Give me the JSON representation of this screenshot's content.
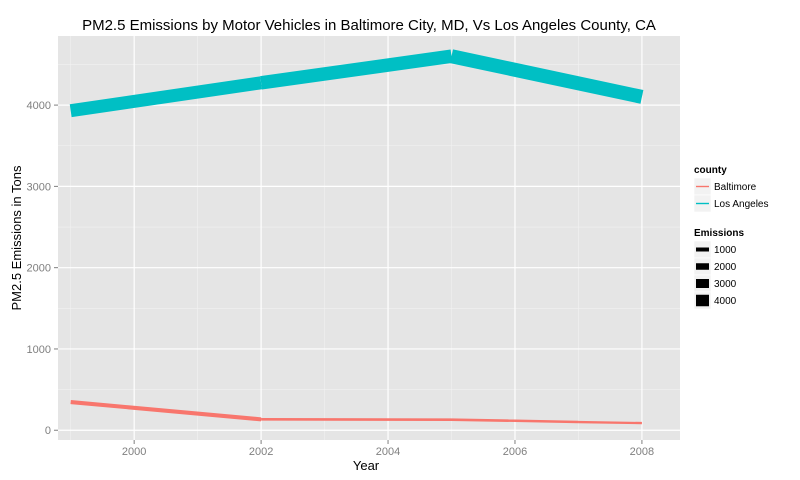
{
  "chart_data": {
    "type": "line",
    "title": "PM2.5 Emissions by Motor Vehicles in Baltimore City, MD, Vs Los Angeles County, CA",
    "xlabel": "Year",
    "ylabel": "PM2.5 Emissions in Tons",
    "xlim": [
      1998.8,
      2008.6
    ],
    "ylim": [
      -120,
      4850
    ],
    "x_ticks": [
      2000,
      2002,
      2004,
      2006,
      2008
    ],
    "y_ticks": [
      0,
      1000,
      2000,
      3000,
      4000
    ],
    "grid": true,
    "panel_background": "#e5e5e5",
    "legend_position": "right",
    "series": [
      {
        "name": "Baltimore",
        "color": "#f8766d",
        "points": [
          {
            "x": 1999,
            "y": 347
          },
          {
            "x": 2002,
            "y": 134
          },
          {
            "x": 2005,
            "y": 130
          },
          {
            "x": 2006,
            "y": 117
          },
          {
            "x": 2007,
            "y": 101
          },
          {
            "x": 2008,
            "y": 88
          }
        ]
      },
      {
        "name": "Los Angeles",
        "color": "#00bfc4",
        "points": [
          {
            "x": 1999,
            "y": 3931
          },
          {
            "x": 2002,
            "y": 4274
          },
          {
            "x": 2005,
            "y": 4601
          },
          {
            "x": 2008,
            "y": 4101
          }
        ]
      }
    ],
    "legends": {
      "color": {
        "title": "county",
        "entries": [
          {
            "label": "Baltimore",
            "color": "#f8766d"
          },
          {
            "label": "Los Angeles",
            "color": "#00bfc4"
          }
        ]
      },
      "size": {
        "title": "Emissions",
        "entries": [
          {
            "label": "1000",
            "value": 1000
          },
          {
            "label": "2000",
            "value": 2000
          },
          {
            "label": "3000",
            "value": 3000
          },
          {
            "label": "4000",
            "value": 4000
          }
        ]
      }
    }
  }
}
